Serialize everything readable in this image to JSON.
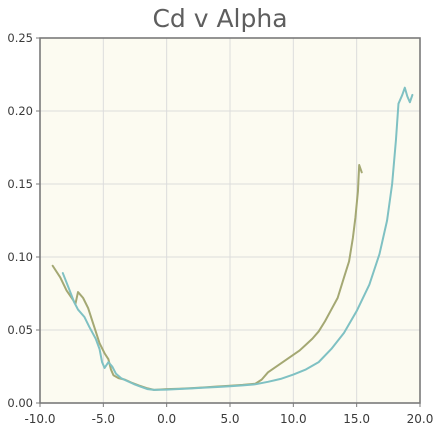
{
  "chart_data": {
    "type": "line",
    "title": "Cd v Alpha",
    "xlabel": "",
    "ylabel": "",
    "xlim": [
      -10,
      20
    ],
    "ylim": [
      0,
      0.25
    ],
    "x_ticks": [
      -10,
      -5,
      0,
      5,
      10,
      15,
      20
    ],
    "x_tick_labels": [
      "-10.0",
      "-5.0",
      "0.0",
      "5.0",
      "10.0",
      "15.0",
      "20.0"
    ],
    "y_ticks": [
      0,
      0.05,
      0.1,
      0.15,
      0.2,
      0.25
    ],
    "y_tick_labels": [
      "0.00",
      "0.05",
      "0.10",
      "0.15",
      "0.20",
      "0.25"
    ],
    "grid": true,
    "background": "#fcfbf1",
    "series": [
      {
        "color": "#a4a873",
        "points": [
          [
            -9.0,
            0.094
          ],
          [
            -8.4,
            0.086
          ],
          [
            -7.9,
            0.077
          ],
          [
            -7.5,
            0.072
          ],
          [
            -7.2,
            0.068
          ],
          [
            -7.0,
            0.076
          ],
          [
            -6.6,
            0.072
          ],
          [
            -6.2,
            0.065
          ],
          [
            -5.9,
            0.057
          ],
          [
            -5.6,
            0.049
          ],
          [
            -5.3,
            0.041
          ],
          [
            -4.9,
            0.034
          ],
          [
            -4.6,
            0.03
          ],
          [
            -4.4,
            0.023
          ],
          [
            -4.2,
            0.019
          ],
          [
            -3.8,
            0.017
          ],
          [
            -3.3,
            0.016
          ],
          [
            -2.8,
            0.014
          ],
          [
            -2.2,
            0.012
          ],
          [
            -1.5,
            0.01
          ],
          [
            -1.0,
            0.009
          ],
          [
            0.0,
            0.0095
          ],
          [
            1.0,
            0.0098
          ],
          [
            2.0,
            0.0102
          ],
          [
            3.0,
            0.0107
          ],
          [
            4.0,
            0.0113
          ],
          [
            5.0,
            0.0118
          ],
          [
            6.0,
            0.0124
          ],
          [
            7.0,
            0.0132
          ],
          [
            7.5,
            0.016
          ],
          [
            8.0,
            0.021
          ],
          [
            8.5,
            0.024
          ],
          [
            9.0,
            0.027
          ],
          [
            9.5,
            0.03
          ],
          [
            10.0,
            0.033
          ],
          [
            10.5,
            0.036
          ],
          [
            11.0,
            0.04
          ],
          [
            11.5,
            0.044
          ],
          [
            12.0,
            0.049
          ],
          [
            12.5,
            0.056
          ],
          [
            13.0,
            0.064
          ],
          [
            13.5,
            0.072
          ],
          [
            14.0,
            0.086
          ],
          [
            14.4,
            0.097
          ],
          [
            14.7,
            0.113
          ],
          [
            14.9,
            0.127
          ],
          [
            15.1,
            0.145
          ],
          [
            15.2,
            0.163
          ],
          [
            15.4,
            0.158
          ]
        ]
      },
      {
        "color": "#7fc1c3",
        "points": [
          [
            -8.2,
            0.089
          ],
          [
            -7.7,
            0.078
          ],
          [
            -7.3,
            0.069
          ],
          [
            -7.0,
            0.064
          ],
          [
            -6.5,
            0.059
          ],
          [
            -6.1,
            0.052
          ],
          [
            -5.6,
            0.044
          ],
          [
            -5.3,
            0.037
          ],
          [
            -5.1,
            0.028
          ],
          [
            -4.9,
            0.024
          ],
          [
            -4.6,
            0.028
          ],
          [
            -4.3,
            0.025
          ],
          [
            -4.0,
            0.02
          ],
          [
            -3.6,
            0.017
          ],
          [
            -3.1,
            0.015
          ],
          [
            -2.6,
            0.013
          ],
          [
            -2.0,
            0.011
          ],
          [
            -1.5,
            0.0095
          ],
          [
            -1.0,
            0.009
          ],
          [
            0.0,
            0.0092
          ],
          [
            1.0,
            0.0096
          ],
          [
            2.0,
            0.01
          ],
          [
            3.0,
            0.0105
          ],
          [
            4.0,
            0.011
          ],
          [
            5.0,
            0.0115
          ],
          [
            6.0,
            0.0121
          ],
          [
            7.0,
            0.0128
          ],
          [
            8.0,
            0.0145
          ],
          [
            9.0,
            0.0165
          ],
          [
            10.0,
            0.0195
          ],
          [
            11.0,
            0.023
          ],
          [
            12.0,
            0.028
          ],
          [
            13.0,
            0.037
          ],
          [
            14.0,
            0.048
          ],
          [
            15.0,
            0.063
          ],
          [
            16.0,
            0.081
          ],
          [
            16.8,
            0.102
          ],
          [
            17.4,
            0.125
          ],
          [
            17.8,
            0.15
          ],
          [
            18.1,
            0.18
          ],
          [
            18.3,
            0.205
          ],
          [
            18.6,
            0.211
          ],
          [
            18.8,
            0.216
          ],
          [
            19.0,
            0.21
          ],
          [
            19.2,
            0.206
          ],
          [
            19.4,
            0.211
          ]
        ]
      }
    ]
  }
}
